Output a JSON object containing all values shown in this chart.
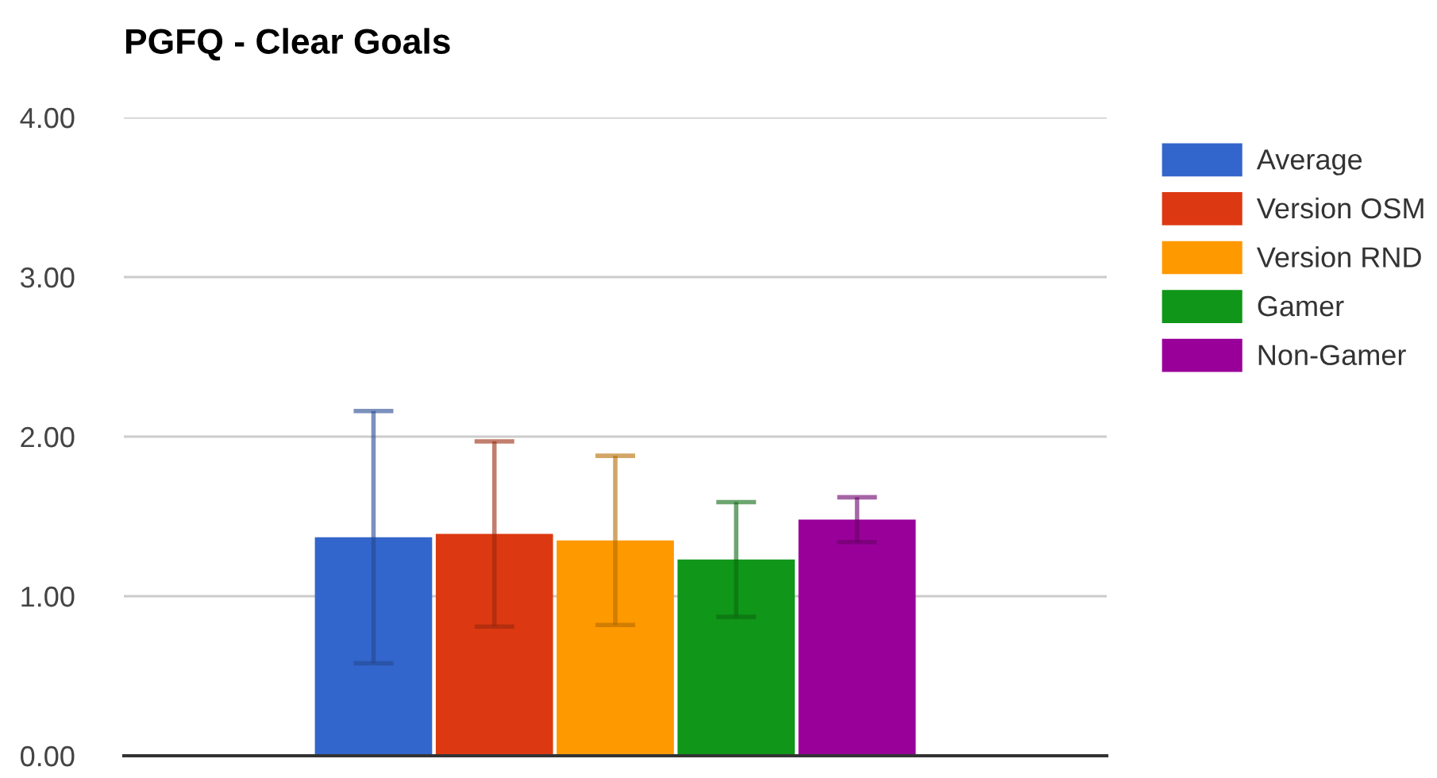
{
  "chart_data": {
    "type": "bar",
    "title": "PGFQ - Clear Goals",
    "categories": [
      null
    ],
    "series": [
      {
        "name": "Average",
        "color": "#3366cc",
        "values": [
          1.37
        ],
        "errors": [
          0.79
        ]
      },
      {
        "name": "Version OSM",
        "color": "#dc3912",
        "values": [
          1.39
        ],
        "errors": [
          0.58
        ]
      },
      {
        "name": "Version RND",
        "color": "#ff9900",
        "values": [
          1.35
        ],
        "errors": [
          0.53
        ]
      },
      {
        "name": "Gamer",
        "color": "#109618",
        "values": [
          1.23
        ],
        "errors": [
          0.36
        ]
      },
      {
        "name": "Non-Gamer",
        "color": "#990099",
        "values": [
          1.48
        ],
        "errors": [
          0.14
        ]
      }
    ],
    "ylim": [
      0,
      4
    ],
    "yticks": [
      {
        "value": 0,
        "label": "0.00"
      },
      {
        "value": 1,
        "label": "1.00"
      },
      {
        "value": 2,
        "label": "2.00"
      },
      {
        "value": 3,
        "label": "3.00"
      },
      {
        "value": 4,
        "label": "4.00"
      }
    ],
    "grid": "y",
    "legend": "top right"
  }
}
